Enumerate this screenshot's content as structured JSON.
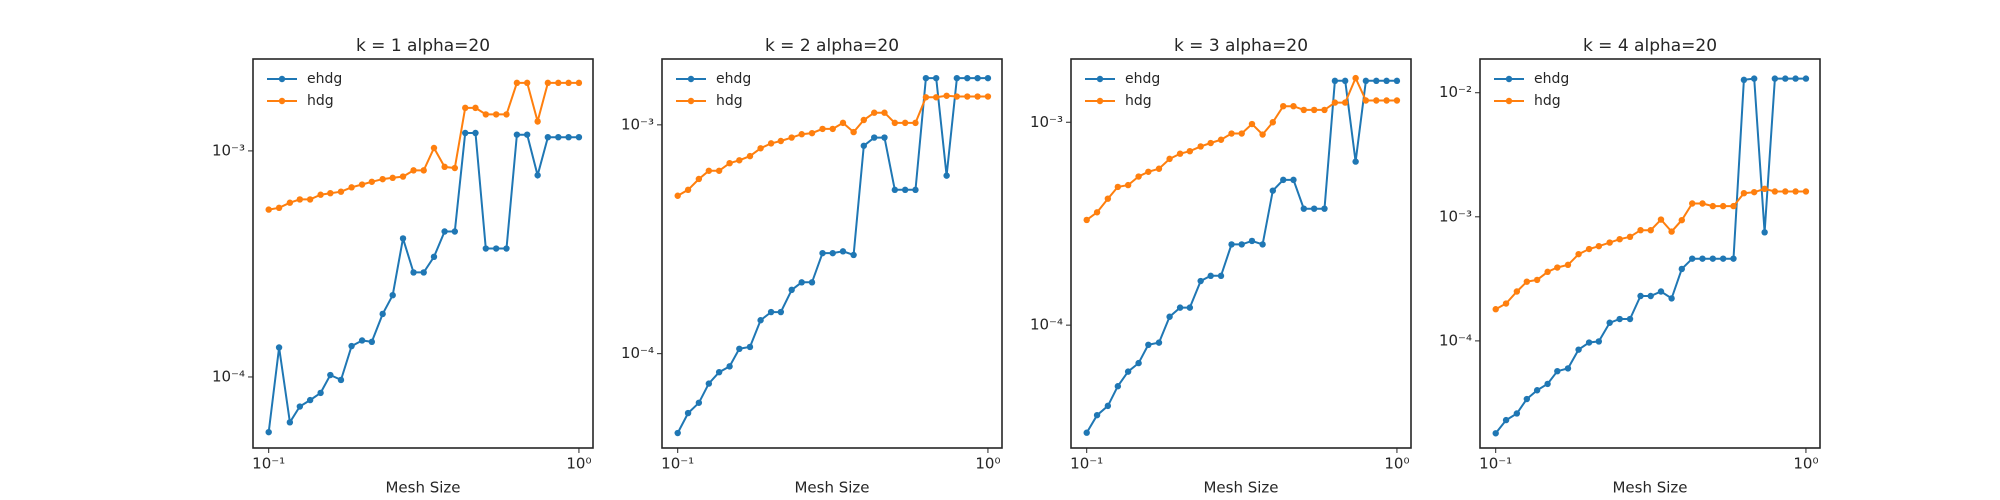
{
  "chart_data": [
    {
      "type": "line",
      "title": "k = 1 alpha=20",
      "xlabel": "Mesh Size",
      "log_x": true,
      "log_y": true,
      "legend": "upper left",
      "x": [
        0.1,
        0.108,
        0.117,
        0.126,
        0.136,
        0.147,
        0.158,
        0.171,
        0.185,
        0.2,
        0.215,
        0.233,
        0.251,
        0.271,
        0.293,
        0.316,
        0.341,
        0.369,
        0.398,
        0.43,
        0.464,
        0.501,
        0.541,
        0.584,
        0.631,
        0.681,
        0.736,
        0.794,
        0.858,
        0.926,
        1.0
      ],
      "xlim": [
        0.089,
        1.11
      ],
      "ylim": [
        4.85e-05,
        0.00255
      ],
      "xticks": [
        {
          "value": 0.1,
          "label": "10⁻¹"
        },
        {
          "value": 1,
          "label": "10⁰"
        }
      ],
      "yticks": [
        {
          "value": 0.0001,
          "label": "10⁻⁴"
        },
        {
          "value": 0.001,
          "label": "10⁻³"
        }
      ],
      "series": [
        {
          "name": "ehdg",
          "color": "#1f77b4",
          "values": [
            5.7e-05,
            0.000135,
            6.3e-05,
            7.4e-05,
            7.9e-05,
            8.5e-05,
            0.000102,
            9.7e-05,
            0.000137,
            0.000145,
            0.000143,
            0.00019,
            0.00023,
            0.00041,
            0.00029,
            0.00029,
            0.00034,
            0.00044,
            0.00044,
            0.0012,
            0.0012,
            0.00037,
            0.00037,
            0.00037,
            0.00118,
            0.00118,
            0.00078,
            0.00115,
            0.00115,
            0.00115,
            0.00115
          ]
        },
        {
          "name": "hdg",
          "color": "#ff7f0e",
          "values": [
            0.00055,
            0.00056,
            0.00059,
            0.00061,
            0.00061,
            0.00064,
            0.00065,
            0.00066,
            0.00069,
            0.00071,
            0.00073,
            0.00075,
            0.00076,
            0.00077,
            0.00082,
            0.00082,
            0.00103,
            0.00085,
            0.00084,
            0.00155,
            0.00155,
            0.00145,
            0.00145,
            0.00145,
            0.002,
            0.002,
            0.00135,
            0.002,
            0.002,
            0.002,
            0.002
          ]
        }
      ]
    },
    {
      "type": "line",
      "title": "k = 2 alpha=20",
      "xlabel": "Mesh Size",
      "log_x": true,
      "log_y": true,
      "legend": "upper left",
      "x": [
        0.1,
        0.108,
        0.117,
        0.126,
        0.136,
        0.147,
        0.158,
        0.171,
        0.185,
        0.2,
        0.215,
        0.233,
        0.251,
        0.271,
        0.293,
        0.316,
        0.341,
        0.369,
        0.398,
        0.43,
        0.464,
        0.501,
        0.541,
        0.584,
        0.631,
        0.681,
        0.736,
        0.794,
        0.858,
        0.926,
        1.0
      ],
      "xlim": [
        0.089,
        1.11
      ],
      "ylim": [
        3.87e-05,
        0.00194
      ],
      "xticks": [
        {
          "value": 0.1,
          "label": "10⁻¹"
        },
        {
          "value": 1,
          "label": "10⁰"
        }
      ],
      "yticks": [
        {
          "value": 0.0001,
          "label": "10⁻⁴"
        },
        {
          "value": 0.001,
          "label": "10⁻³"
        }
      ],
      "series": [
        {
          "name": "ehdg",
          "color": "#1f77b4",
          "values": [
            4.5e-05,
            5.5e-05,
            6.1e-05,
            7.4e-05,
            8.3e-05,
            8.8e-05,
            0.000105,
            0.000107,
            0.00014,
            0.000152,
            0.000152,
            0.00019,
            0.000205,
            0.000205,
            0.000275,
            0.000275,
            0.00028,
            0.00027,
            0.00081,
            0.00088,
            0.00088,
            0.00052,
            0.00052,
            0.00052,
            0.0016,
            0.0016,
            0.0006,
            0.0016,
            0.0016,
            0.0016,
            0.0016
          ]
        },
        {
          "name": "hdg",
          "color": "#ff7f0e",
          "values": [
            0.00049,
            0.00052,
            0.00058,
            0.00063,
            0.00063,
            0.00068,
            0.0007,
            0.00073,
            0.00079,
            0.00083,
            0.00085,
            0.00088,
            0.00091,
            0.00092,
            0.00096,
            0.00096,
            0.00102,
            0.00093,
            0.00105,
            0.00113,
            0.00113,
            0.00102,
            0.00102,
            0.00102,
            0.00132,
            0.00132,
            0.00134,
            0.00133,
            0.00133,
            0.00133,
            0.00133
          ]
        }
      ]
    },
    {
      "type": "line",
      "title": "k = 3 alpha=20",
      "xlabel": "Mesh Size",
      "log_x": true,
      "log_y": true,
      "legend": "upper left",
      "x": [
        0.1,
        0.108,
        0.117,
        0.126,
        0.136,
        0.147,
        0.158,
        0.171,
        0.185,
        0.2,
        0.215,
        0.233,
        0.251,
        0.271,
        0.293,
        0.316,
        0.341,
        0.369,
        0.398,
        0.43,
        0.464,
        0.501,
        0.541,
        0.584,
        0.631,
        0.681,
        0.736,
        0.794,
        0.858,
        0.926,
        1.0
      ],
      "xlim": [
        0.089,
        1.11
      ],
      "ylim": [
        2.48e-05,
        0.00205
      ],
      "xticks": [
        {
          "value": 0.1,
          "label": "10⁻¹"
        },
        {
          "value": 1,
          "label": "10⁰"
        }
      ],
      "yticks": [
        {
          "value": 0.0001,
          "label": "10⁻⁴"
        },
        {
          "value": 0.001,
          "label": "10⁻³"
        }
      ],
      "series": [
        {
          "name": "ehdg",
          "color": "#1f77b4",
          "values": [
            2.95e-05,
            3.6e-05,
            4e-05,
            5e-05,
            5.9e-05,
            6.5e-05,
            8e-05,
            8.2e-05,
            0.00011,
            0.000122,
            0.000122,
            0.000165,
            0.000175,
            0.000175,
            0.00025,
            0.00025,
            0.00026,
            0.00025,
            0.00046,
            0.00052,
            0.00052,
            0.000375,
            0.000375,
            0.000375,
            0.0016,
            0.0016,
            0.00064,
            0.0016,
            0.0016,
            0.0016,
            0.0016
          ]
        },
        {
          "name": "hdg",
          "color": "#ff7f0e",
          "values": [
            0.00033,
            0.00036,
            0.00042,
            0.00048,
            0.00049,
            0.00054,
            0.00057,
            0.00059,
            0.00066,
            0.0007,
            0.00072,
            0.00076,
            0.00079,
            0.00082,
            0.00088,
            0.00088,
            0.00098,
            0.00087,
            0.001,
            0.0012,
            0.0012,
            0.00115,
            0.00115,
            0.00115,
            0.00125,
            0.00125,
            0.00165,
            0.00128,
            0.00128,
            0.00128,
            0.00128
          ]
        }
      ]
    },
    {
      "type": "line",
      "title": "k = 4 alpha=20",
      "xlabel": "Mesh Size",
      "log_x": true,
      "log_y": true,
      "legend": "upper left",
      "x": [
        0.1,
        0.108,
        0.117,
        0.126,
        0.136,
        0.147,
        0.158,
        0.171,
        0.185,
        0.2,
        0.215,
        0.233,
        0.251,
        0.271,
        0.293,
        0.316,
        0.341,
        0.369,
        0.398,
        0.43,
        0.464,
        0.501,
        0.541,
        0.584,
        0.631,
        0.681,
        0.736,
        0.794,
        0.858,
        0.926,
        1.0
      ],
      "xlim": [
        0.089,
        1.11
      ],
      "ylim": [
        1.37e-05,
        0.0187
      ],
      "xticks": [
        {
          "value": 0.1,
          "label": "10⁻¹"
        },
        {
          "value": 1,
          "label": "10⁰"
        }
      ],
      "yticks": [
        {
          "value": 0.0001,
          "label": "10⁻⁴"
        },
        {
          "value": 0.001,
          "label": "10⁻³"
        },
        {
          "value": 0.01,
          "label": "10⁻²"
        }
      ],
      "series": [
        {
          "name": "ehdg",
          "color": "#1f77b4",
          "values": [
            1.8e-05,
            2.3e-05,
            2.6e-05,
            3.4e-05,
            4e-05,
            4.5e-05,
            5.7e-05,
            6e-05,
            8.5e-05,
            9.7e-05,
            9.9e-05,
            0.00014,
            0.00015,
            0.00015,
            0.00023,
            0.00023,
            0.00025,
            0.00022,
            0.00038,
            0.00046,
            0.00046,
            0.00046,
            0.00046,
            0.00046,
            0.0127,
            0.013,
            0.00075,
            0.013,
            0.013,
            0.013,
            0.013
          ]
        },
        {
          "name": "hdg",
          "color": "#ff7f0e",
          "values": [
            0.00018,
            0.0002,
            0.00025,
            0.0003,
            0.00031,
            0.00036,
            0.00039,
            0.00041,
            0.0005,
            0.00055,
            0.00058,
            0.00062,
            0.00066,
            0.00069,
            0.00078,
            0.00078,
            0.00095,
            0.00076,
            0.00094,
            0.00128,
            0.00128,
            0.00122,
            0.00122,
            0.00122,
            0.00155,
            0.00158,
            0.00168,
            0.0016,
            0.0016,
            0.0016,
            0.0016
          ]
        }
      ]
    }
  ]
}
